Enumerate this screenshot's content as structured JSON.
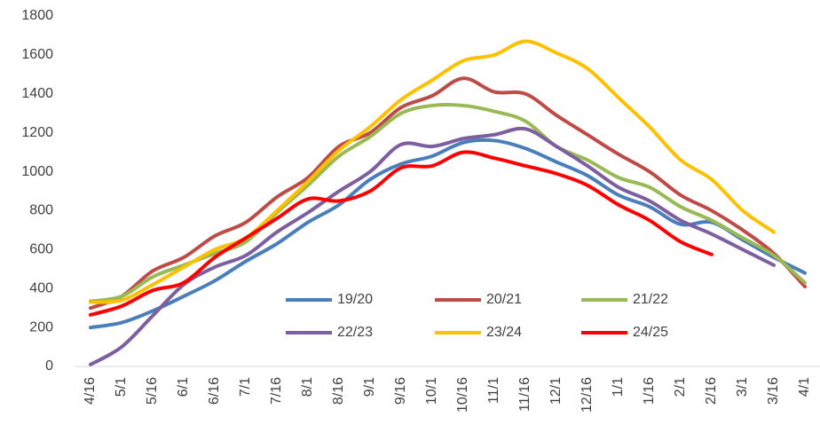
{
  "chart_data": {
    "type": "line",
    "categories": [
      "4/16",
      "5/1",
      "5/16",
      "6/1",
      "6/16",
      "7/1",
      "7/16",
      "8/1",
      "8/16",
      "9/1",
      "9/16",
      "10/1",
      "10/16",
      "11/1",
      "11/16",
      "12/1",
      "12/16",
      "1/1",
      "1/16",
      "2/1",
      "2/16",
      "3/1",
      "3/16",
      "4/1"
    ],
    "series": [
      {
        "name": "19/20",
        "color": "#4a7ebb",
        "values": [
          200,
          225,
          285,
          360,
          440,
          540,
          630,
          740,
          830,
          960,
          1040,
          1080,
          1150,
          1160,
          1120,
          1050,
          980,
          880,
          820,
          730,
          740,
          650,
          560,
          480
        ]
      },
      {
        "name": "20/21",
        "color": "#be4b48",
        "values": [
          300,
          360,
          490,
          560,
          670,
          740,
          870,
          970,
          1130,
          1200,
          1330,
          1390,
          1480,
          1410,
          1400,
          1290,
          1190,
          1090,
          1000,
          880,
          800,
          700,
          580,
          410
        ]
      },
      {
        "name": "21/22",
        "color": "#98b954",
        "values": [
          335,
          360,
          460,
          520,
          580,
          640,
          790,
          930,
          1080,
          1180,
          1300,
          1340,
          1340,
          1310,
          1260,
          1130,
          1060,
          970,
          920,
          820,
          750,
          660,
          570,
          430
        ]
      },
      {
        "name": "22/23",
        "color": "#7d5fa0",
        "values": [
          10,
          100,
          260,
          420,
          510,
          570,
          690,
          790,
          900,
          1000,
          1140,
          1130,
          1170,
          1190,
          1220,
          1130,
          1030,
          920,
          850,
          750,
          680,
          600,
          520,
          null
        ]
      },
      {
        "name": "23/24",
        "color": "#ffc000",
        "values": [
          330,
          340,
          420,
          510,
          600,
          660,
          800,
          950,
          1110,
          1230,
          1370,
          1470,
          1570,
          1600,
          1670,
          1610,
          1530,
          1380,
          1230,
          1060,
          960,
          800,
          690,
          null
        ]
      },
      {
        "name": "24/25",
        "color": "#ff0000",
        "values": [
          265,
          310,
          390,
          430,
          560,
          660,
          760,
          860,
          850,
          900,
          1020,
          1030,
          1100,
          1070,
          1030,
          990,
          930,
          830,
          750,
          640,
          575,
          null,
          null,
          null
        ]
      }
    ],
    "ylim": [
      0,
      1800
    ],
    "yticks": [
      0,
      200,
      400,
      600,
      800,
      1000,
      1200,
      1400,
      1600,
      1800
    ]
  }
}
